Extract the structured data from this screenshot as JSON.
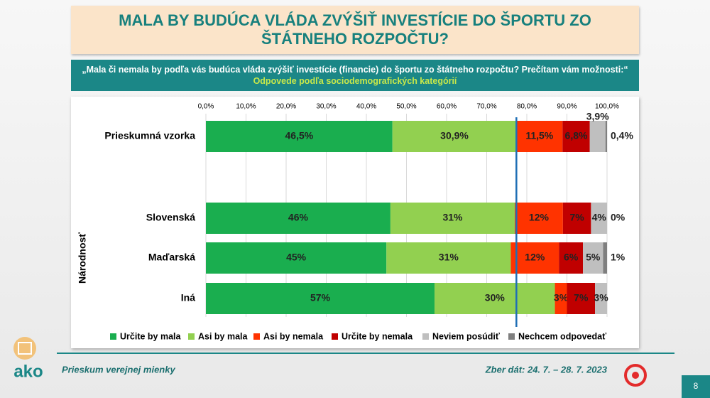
{
  "header": {
    "title": "MALA BY BUDÚCA VLÁDA ZVÝŠIŤ INVESTÍCIE DO ŠPORTU ZO ŠTÁTNEHO ROZPOČTU?",
    "question": "„Mala či nemala by podľa vás budúca vláda zvýšiť investície (financie) do športu zo štátneho rozpočtu? Prečítam vám možnosti:“",
    "subtitle": "Odpovede podľa sociodemografických kategórií"
  },
  "chart_data": {
    "type": "stacked-bar-horizontal",
    "categories": [
      "Prieskumná vzorka",
      "Slovenská",
      "Maďarská",
      "Iná"
    ],
    "group_label": "Národnosť",
    "xlim": [
      0,
      100
    ],
    "xticks": [
      {
        "value": 0,
        "label": "0,0%"
      },
      {
        "value": 10,
        "label": "10,0%"
      },
      {
        "value": 20,
        "label": "20,0%"
      },
      {
        "value": 30,
        "label": "30,0%"
      },
      {
        "value": 40,
        "label": "40,0%"
      },
      {
        "value": 50,
        "label": "50,0%"
      },
      {
        "value": 60,
        "label": "60,0%"
      },
      {
        "value": 70,
        "label": "70,0%"
      },
      {
        "value": 80,
        "label": "80,0%"
      },
      {
        "value": 90,
        "label": "90,0%"
      },
      {
        "value": 100,
        "label": "100,0%"
      }
    ],
    "grid": true,
    "reference_line": 77.4,
    "series": [
      {
        "name": "Určite by mala",
        "color": "#1aae4f",
        "values": [
          46.5,
          46,
          45,
          57
        ],
        "value_labels": [
          "46,5%",
          "46%",
          "45%",
          "57%"
        ]
      },
      {
        "name": "Asi by mala",
        "color": "#92d050",
        "values": [
          30.9,
          31,
          31,
          30
        ],
        "value_labels": [
          "30,9%",
          "31%",
          "31%",
          "30%"
        ]
      },
      {
        "name": "Asi by nemala",
        "color": "#ff3300",
        "values": [
          11.5,
          12,
          12,
          3
        ],
        "value_labels": [
          "11,5%",
          "12%",
          "12%",
          "3%"
        ]
      },
      {
        "name": "Určite by nemala",
        "color": "#c00000",
        "values": [
          6.8,
          7,
          6,
          7
        ],
        "value_labels": [
          "6,8%",
          "7%",
          "6%",
          "7%"
        ]
      },
      {
        "name": "Neviem posúdiť",
        "color": "#bfbfbf",
        "values": [
          3.9,
          4,
          5,
          3
        ],
        "value_labels": [
          "3,9%",
          "4%",
          "5%",
          "3%"
        ]
      },
      {
        "name": "Nechcem odpovedať",
        "color": "#7f7f7f",
        "values": [
          0.4,
          0,
          1,
          0
        ],
        "value_labels": [
          "0,4%",
          "0%",
          "1%",
          null
        ]
      }
    ]
  },
  "footer": {
    "left": "Prieskum verejnej mienky",
    "right": "Zber dát: 24. 7. – 28. 7. 2023",
    "page": "8",
    "logo": "ako"
  }
}
